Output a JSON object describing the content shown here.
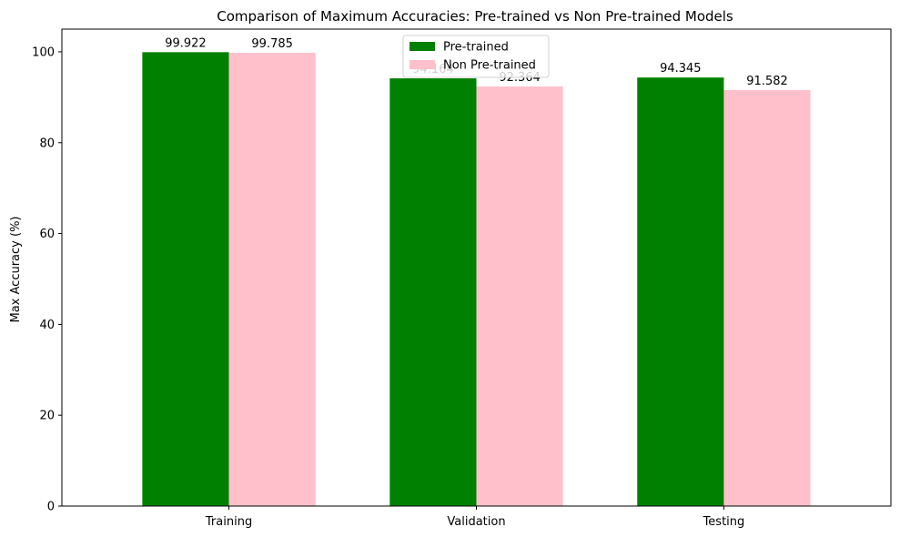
{
  "chart_data": {
    "type": "bar",
    "title": "Comparison of Maximum Accuracies: Pre-trained vs Non Pre-trained Models",
    "xlabel": "",
    "ylabel": "Max Accuracy (%)",
    "categories": [
      "Training",
      "Validation",
      "Testing"
    ],
    "series": [
      {
        "name": "Pre-trained",
        "color": "#008000",
        "values": [
          99.922,
          94.164,
          94.345
        ],
        "labels": [
          "99.922",
          "94.164",
          "94.345"
        ]
      },
      {
        "name": "Non Pre-trained",
        "color": "#ffc0cb",
        "values": [
          99.785,
          92.364,
          91.582
        ],
        "labels": [
          "99.785",
          "92.364",
          "91.582"
        ]
      }
    ],
    "ylim": [
      0,
      105
    ],
    "yticks": [
      0,
      20,
      40,
      60,
      80,
      100
    ],
    "ytick_labels": [
      "0",
      "20",
      "40",
      "60",
      "80",
      "100"
    ],
    "grid": false,
    "legend_position": "top-center"
  }
}
